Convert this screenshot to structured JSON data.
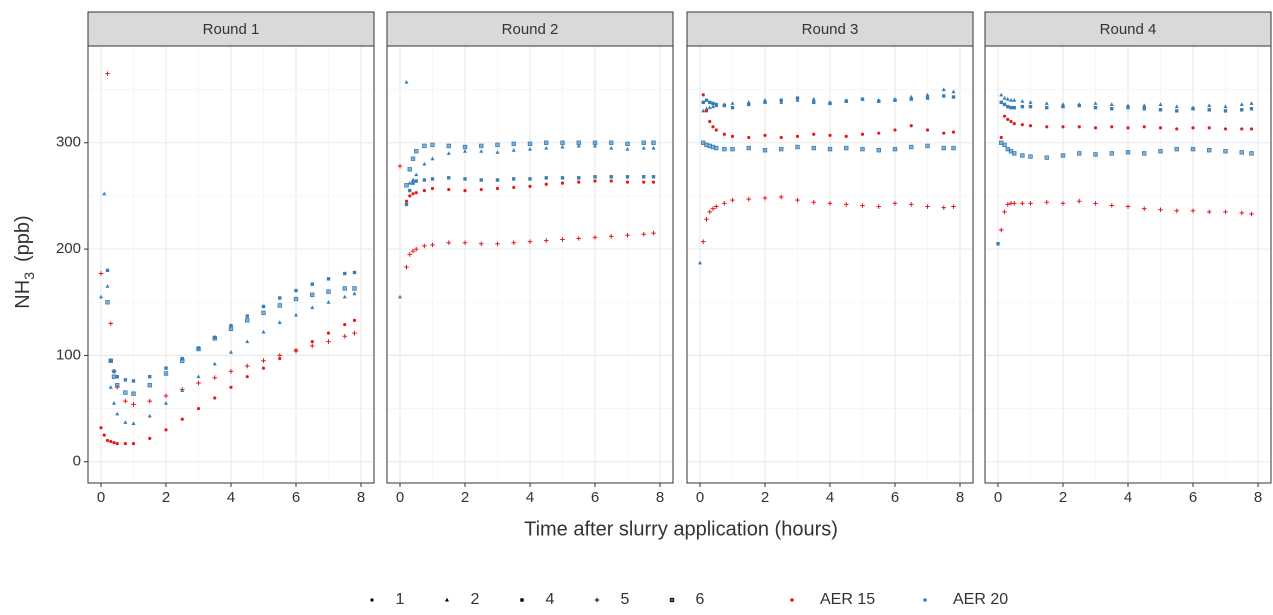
{
  "chart_data": {
    "type": "scatter",
    "xlabel": "Time after slurry application (hours)",
    "ylabel": "NH",
    "ylabel_sub": "3",
    "ylabel_unit": "(ppb)",
    "xlim": [
      -0.4,
      8.4
    ],
    "xticks": [
      0,
      2,
      4,
      6,
      8
    ],
    "x_minor": [
      1,
      3,
      5,
      7
    ],
    "ylim": [
      -20,
      391
    ],
    "yticks": [
      0,
      100,
      200,
      300
    ],
    "y_minor": [
      50,
      150,
      250,
      350
    ],
    "shape_legend": [
      {
        "label": "1",
        "marker": "dot"
      },
      {
        "label": "2",
        "marker": "triangle"
      },
      {
        "label": "4",
        "marker": "square"
      },
      {
        "label": "5",
        "marker": "plus"
      },
      {
        "label": "6",
        "marker": "box"
      }
    ],
    "color_legend": [
      {
        "name": "AER 15",
        "color": "#e41a1c"
      },
      {
        "name": "AER 20",
        "color": "#377eb8"
      }
    ],
    "facets": [
      {
        "title": "Round 1",
        "x": [
          0,
          0.1,
          0.2,
          0.3,
          0.4,
          0.5,
          0.75,
          1,
          1.5,
          2,
          2.5,
          3,
          3.5,
          4,
          4.5,
          5,
          5.5,
          6,
          6.5,
          7,
          7.5,
          7.8
        ],
        "series": [
          {
            "shape": 0,
            "group": 0,
            "values": [
              32,
              25,
              20,
              19,
              18,
              17,
              17,
              17,
              22,
              30,
              40,
              50,
              60,
              70,
              80,
              88,
              97,
              105,
              113,
              121,
              129,
              133
            ]
          },
          {
            "shape": 3,
            "group": 0,
            "values": [
              177,
              null,
              365,
              130,
              85,
              70,
              57,
              54,
              57,
              62,
              68,
              74,
              79,
              85,
              90,
              95,
              100,
              104,
              109,
              113,
              118,
              121
            ]
          },
          {
            "shape": 1,
            "group": 1,
            "values": [
              155,
              252,
              165,
              70,
              55,
              45,
              37,
              36,
              43,
              55,
              67,
              80,
              92,
              103,
              113,
              122,
              131,
              138,
              145,
              150,
              155,
              158
            ]
          },
          {
            "shape": 2,
            "group": 1,
            "values": [
              null,
              null,
              180,
              95,
              85,
              80,
              77,
              76,
              80,
              88,
              97,
              107,
              117,
              128,
              137,
              146,
              154,
              161,
              167,
              172,
              177,
              178
            ]
          },
          {
            "shape": 4,
            "group": 1,
            "values": [
              null,
              null,
              150,
              95,
              80,
              72,
              65,
              64,
              72,
              83,
              95,
              106,
              116,
              125,
              133,
              140,
              147,
              153,
              157,
              160,
              163,
              163
            ]
          }
        ]
      },
      {
        "title": "Round 2",
        "x": [
          0,
          0.1,
          0.2,
          0.3,
          0.4,
          0.5,
          0.75,
          1,
          1.5,
          2,
          2.5,
          3,
          3.5,
          4,
          4.5,
          5,
          5.5,
          6,
          6.5,
          7,
          7.5,
          7.8
        ],
        "series": [
          {
            "shape": 3,
            "group": 0,
            "values": [
              278,
              null,
              183,
              195,
              198,
              200,
              203,
              204,
              206,
              206,
              205,
              205,
              206,
              207,
              208,
              209,
              210,
              211,
              212,
              213,
              214,
              215
            ]
          },
          {
            "shape": 0,
            "group": 0,
            "values": [
              null,
              null,
              245,
              250,
              252,
              253,
              255,
              257,
              256,
              255,
              256,
              257,
              258,
              259,
              261,
              262,
              263,
              264,
              264,
              263,
              263,
              263
            ]
          },
          {
            "shape": 1,
            "group": 1,
            "values": [
              155,
              null,
              357,
              262,
              265,
              270,
              280,
              285,
              290,
              292,
              292,
              291,
              293,
              294,
              295,
              296,
              297,
              297,
              295,
              294,
              295,
              295
            ]
          },
          {
            "shape": 2,
            "group": 1,
            "values": [
              null,
              null,
              242,
              255,
              262,
              264,
              265,
              266,
              267,
              266,
              265,
              265,
              266,
              266,
              267,
              267,
              267,
              268,
              268,
              268,
              268,
              268
            ]
          },
          {
            "shape": 4,
            "group": 1,
            "values": [
              null,
              null,
              260,
              275,
              285,
              292,
              297,
              298,
              297,
              296,
              297,
              298,
              299,
              299,
              300,
              300,
              300,
              300,
              300,
              299,
              300,
              300
            ]
          }
        ]
      },
      {
        "title": "Round 3",
        "x": [
          0,
          0.1,
          0.2,
          0.3,
          0.4,
          0.5,
          0.75,
          1,
          1.5,
          2,
          2.5,
          3,
          3.5,
          4,
          4.5,
          5,
          5.5,
          6,
          6.5,
          7,
          7.5,
          7.8
        ],
        "series": [
          {
            "shape": 1,
            "group": 1,
            "values": [
              187,
              330,
              332,
              333,
              334,
              335,
              336,
              337,
              338,
              340,
              338,
              340,
              341,
              338,
              340,
              341,
              340,
              341,
              343,
              345,
              350,
              348
            ]
          },
          {
            "shape": 2,
            "group": 1,
            "values": [
              null,
              338,
              340,
              338,
              337,
              336,
              335,
              333,
              336,
              338,
              340,
              342,
              338,
              337,
              339,
              341,
              339,
              340,
              341,
              342,
              344,
              343
            ]
          },
          {
            "shape": 0,
            "group": 0,
            "values": [
              null,
              345,
              330,
              320,
              315,
              312,
              308,
              306,
              305,
              307,
              305,
              306,
              308,
              307,
              306,
              308,
              309,
              312,
              316,
              312,
              309,
              310
            ]
          },
          {
            "shape": 4,
            "group": 1,
            "values": [
              null,
              300,
              298,
              297,
              296,
              295,
              294,
              294,
              295,
              293,
              294,
              296,
              295,
              294,
              295,
              294,
              293,
              294,
              296,
              297,
              295,
              295
            ]
          },
          {
            "shape": 3,
            "group": 0,
            "values": [
              null,
              207,
              228,
              235,
              238,
              240,
              243,
              246,
              247,
              248,
              249,
              246,
              244,
              243,
              242,
              241,
              240,
              243,
              242,
              240,
              239,
              240
            ]
          }
        ]
      },
      {
        "title": "Round 4",
        "x": [
          0,
          0.1,
          0.2,
          0.3,
          0.4,
          0.5,
          0.75,
          1,
          1.5,
          2,
          2.5,
          3,
          3.5,
          4,
          4.5,
          5,
          5.5,
          6,
          6.5,
          7,
          7.5,
          7.8
        ],
        "series": [
          {
            "shape": 1,
            "group": 1,
            "values": [
              null,
              345,
              342,
              341,
              340,
              340,
              339,
              338,
              337,
              336,
              336,
              337,
              336,
              335,
              335,
              336,
              334,
              333,
              335,
              334,
              336,
              337
            ]
          },
          {
            "shape": 2,
            "group": 1,
            "values": [
              205,
              338,
              336,
              334,
              333,
              333,
              334,
              334,
              333,
              334,
              335,
              333,
              332,
              333,
              332,
              331,
              330,
              332,
              331,
              330,
              331,
              332
            ]
          },
          {
            "shape": 0,
            "group": 0,
            "values": [
              null,
              305,
              325,
              322,
              320,
              318,
              317,
              316,
              315,
              315,
              315,
              314,
              315,
              314,
              315,
              314,
              313,
              314,
              314,
              313,
              313,
              313
            ]
          },
          {
            "shape": 4,
            "group": 1,
            "values": [
              null,
              300,
              298,
              294,
              292,
              290,
              288,
              287,
              286,
              288,
              290,
              289,
              290,
              291,
              290,
              292,
              294,
              294,
              293,
              292,
              291,
              290
            ]
          },
          {
            "shape": 3,
            "group": 0,
            "values": [
              null,
              218,
              235,
              242,
              243,
              243,
              243,
              243,
              244,
              243,
              245,
              243,
              241,
              240,
              238,
              237,
              236,
              236,
              235,
              235,
              234,
              233
            ]
          }
        ]
      }
    ]
  }
}
